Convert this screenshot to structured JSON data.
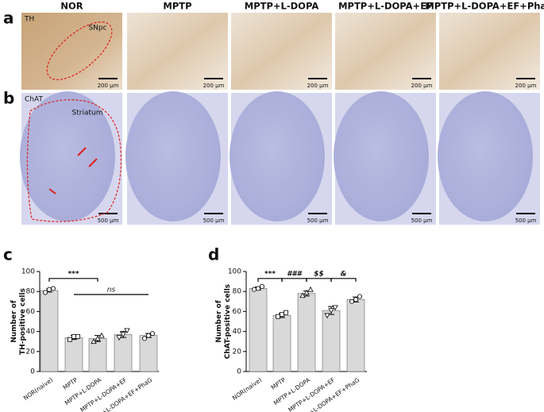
{
  "figure": {
    "columns": [
      "NOR",
      "MPTP",
      "MPTP+L-DOPA",
      "MPTP+L-DOPA+EF",
      "MPTP+L-DOPA+EF+PhaG"
    ],
    "panel_a": {
      "letter": "a",
      "row_label": "TH",
      "region": "SNpc",
      "scale_bars": [
        "200 μm",
        "200 μm",
        "200 μm",
        "200 μm",
        "200 μm"
      ]
    },
    "panel_b": {
      "letter": "b",
      "row_label": "ChAT",
      "region": "Striatum",
      "scale_bars": [
        "500 μm",
        "500 μm",
        "500 μm",
        "500 μm",
        "500 μm"
      ]
    }
  },
  "chart_data": [
    {
      "type": "bar",
      "panel": "c",
      "ylabel": [
        "Number of",
        "TH-positive cells"
      ],
      "categories": [
        "NOR(naive)",
        "MPTP",
        "MPTP+L-DOPA",
        "MPTP+L-DOPA+EF",
        "MPTP+L-DOPA+EF+PhaG"
      ],
      "values": [
        81,
        34,
        33,
        37,
        36
      ],
      "errors": [
        1.5,
        2,
        3,
        3,
        2
      ],
      "points": [
        [
          79,
          82,
          83
        ],
        [
          32,
          35,
          35
        ],
        [
          30,
          33,
          36
        ],
        [
          34,
          37,
          41
        ],
        [
          33,
          36,
          38
        ]
      ],
      "color": "#d9d9d9",
      "ylim": [
        0,
        100
      ],
      "yticks": [
        0,
        20,
        40,
        60,
        80,
        100
      ],
      "annotations": [
        "***",
        "ns"
      ]
    },
    {
      "type": "bar",
      "panel": "d",
      "ylabel": [
        "Number of",
        "ChAT-positive cells"
      ],
      "categories": [
        "NOR(naive)",
        "MPTP",
        "MPTP+L-DOPA",
        "MPTP+L-DOPA+EF",
        "MPTP+L-DOPA+EF+PhaG"
      ],
      "values": [
        83,
        56,
        78,
        61,
        72
      ],
      "errors": [
        1.5,
        2,
        2.5,
        4,
        2.5
      ],
      "points": [
        [
          82,
          83,
          85
        ],
        [
          55,
          57,
          59
        ],
        [
          76,
          79,
          82
        ],
        [
          56,
          61,
          64
        ],
        [
          70,
          72,
          75
        ]
      ],
      "color": "#d9d9d9",
      "ylim": [
        0,
        100
      ],
      "yticks": [
        0,
        20,
        40,
        60,
        80,
        100
      ],
      "annotations": [
        "***",
        "###",
        "$$",
        "&"
      ]
    }
  ]
}
